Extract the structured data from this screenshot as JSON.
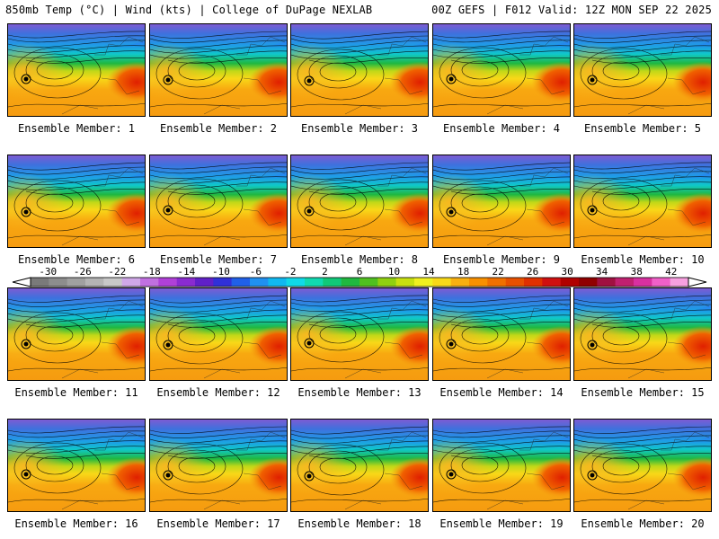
{
  "header": {
    "left": "850mb Temp (°C) | Wind (kts) | College of DuPage NEXLAB",
    "right": "00Z GEFS | F012 Valid: 12Z MON SEP 22 2025"
  },
  "members": [
    {
      "label": "Ensemble Member: 1"
    },
    {
      "label": "Ensemble Member: 2"
    },
    {
      "label": "Ensemble Member: 3"
    },
    {
      "label": "Ensemble Member: 4"
    },
    {
      "label": "Ensemble Member: 5"
    },
    {
      "label": "Ensemble Member: 6"
    },
    {
      "label": "Ensemble Member: 7"
    },
    {
      "label": "Ensemble Member: 8"
    },
    {
      "label": "Ensemble Member: 9"
    },
    {
      "label": "Ensemble Member: 10"
    },
    {
      "label": "Ensemble Member: 11"
    },
    {
      "label": "Ensemble Member: 12"
    },
    {
      "label": "Ensemble Member: 13"
    },
    {
      "label": "Ensemble Member: 14"
    },
    {
      "label": "Ensemble Member: 15"
    },
    {
      "label": "Ensemble Member: 16"
    },
    {
      "label": "Ensemble Member: 17"
    },
    {
      "label": "Ensemble Member: 18"
    },
    {
      "label": "Ensemble Member: 19"
    },
    {
      "label": "Ensemble Member: 20"
    }
  ],
  "colorbar": {
    "labels": [
      "-30",
      "-26",
      "-22",
      "-18",
      "-14",
      "-10",
      "-6",
      "-2",
      "2",
      "6",
      "10",
      "14",
      "18",
      "22",
      "26",
      "30",
      "34",
      "38",
      "42"
    ],
    "colors": [
      "#7a7a7a",
      "#8d8d8d",
      "#a0a0a0",
      "#b4b4b4",
      "#c8c8c8",
      "#d0a8e8",
      "#c070e0",
      "#b040d8",
      "#8a2bd0",
      "#6020c8",
      "#3030d8",
      "#2060e8",
      "#2090f0",
      "#10b8f0",
      "#10d8e8",
      "#10d8b0",
      "#10c878",
      "#20b840",
      "#50c020",
      "#90d010",
      "#c8e010",
      "#f0f020",
      "#f8d818",
      "#f8b010",
      "#f89000",
      "#f07000",
      "#e85000",
      "#e03000",
      "#d01010",
      "#b00000",
      "#900000",
      "#a01040",
      "#c02070",
      "#d830a0",
      "#f060c8",
      "#f8a0e0"
    ]
  }
}
